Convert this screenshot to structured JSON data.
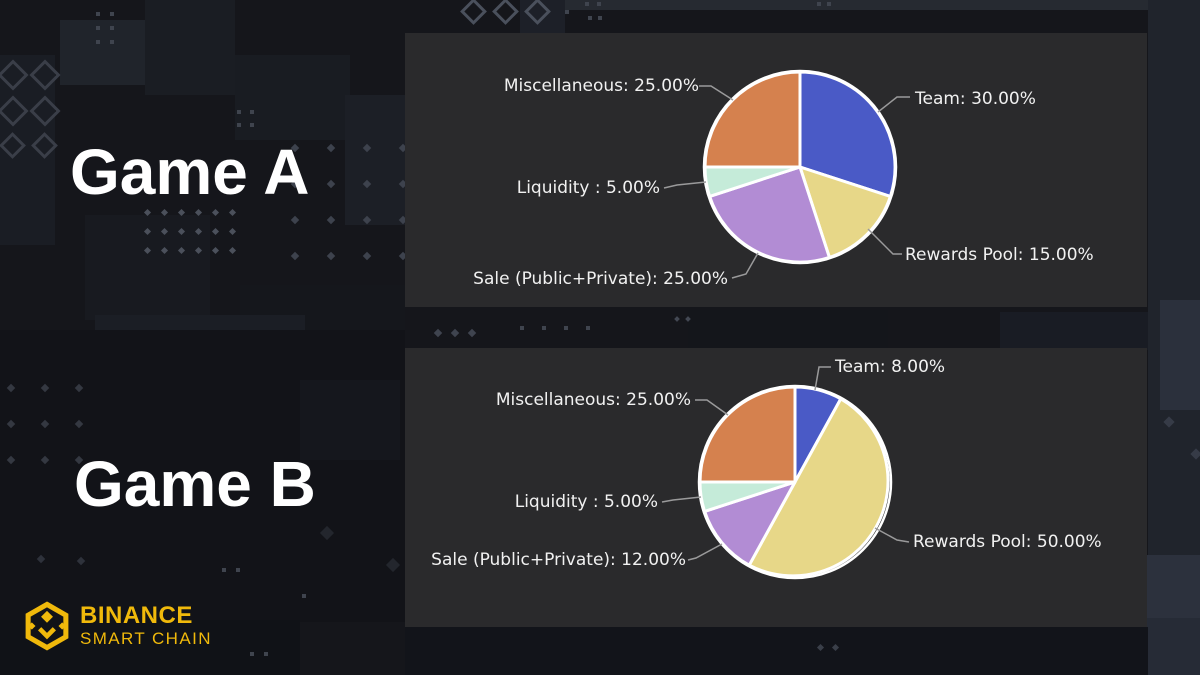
{
  "sections": {
    "game_a": {
      "title": "Game A"
    },
    "game_b": {
      "title": "Game B"
    }
  },
  "brand": {
    "line1": "BINANCE",
    "line2": "SMART CHAIN",
    "color": "#F0B90B"
  },
  "chart_data": [
    {
      "type": "pie",
      "title": "Game A",
      "start_angle_deg": 0,
      "direction": "clockwise",
      "legend_position": "callout-labels",
      "slices": [
        {
          "name": "Team",
          "value": 30.0,
          "label": "Team: 30.00%",
          "color": "#4a5ac6"
        },
        {
          "name": "Rewards Pool",
          "value": 15.0,
          "label": "Rewards Pool: 15.00%",
          "color": "#e7d788"
        },
        {
          "name": "Sale (Public+Private)",
          "value": 25.0,
          "label": "Sale (Public+Private): 25.00%",
          "color": "#b28cd4"
        },
        {
          "name": "Liquidity",
          "value": 5.0,
          "label": "Liquidity : 5.00%",
          "color": "#c5ebd9"
        },
        {
          "name": "Miscellaneous",
          "value": 25.0,
          "label": "Miscellaneous: 25.00%",
          "color": "#d5814e"
        }
      ]
    },
    {
      "type": "pie",
      "title": "Game B",
      "start_angle_deg": 0,
      "direction": "clockwise",
      "legend_position": "callout-labels",
      "slices": [
        {
          "name": "Team",
          "value": 8.0,
          "label": "Team: 8.00%",
          "color": "#4a5ac6"
        },
        {
          "name": "Rewards Pool",
          "value": 50.0,
          "label": "Rewards Pool: 50.00%",
          "color": "#e7d788"
        },
        {
          "name": "Sale (Public+Private)",
          "value": 12.0,
          "label": "Sale (Public+Private): 12.00%",
          "color": "#b28cd4"
        },
        {
          "name": "Liquidity",
          "value": 5.0,
          "label": "Liquidity : 5.00%",
          "color": "#c5ebd9"
        },
        {
          "name": "Miscellaneous",
          "value": 25.0,
          "label": "Miscellaneous: 25.00%",
          "color": "#d5814e"
        }
      ]
    }
  ]
}
